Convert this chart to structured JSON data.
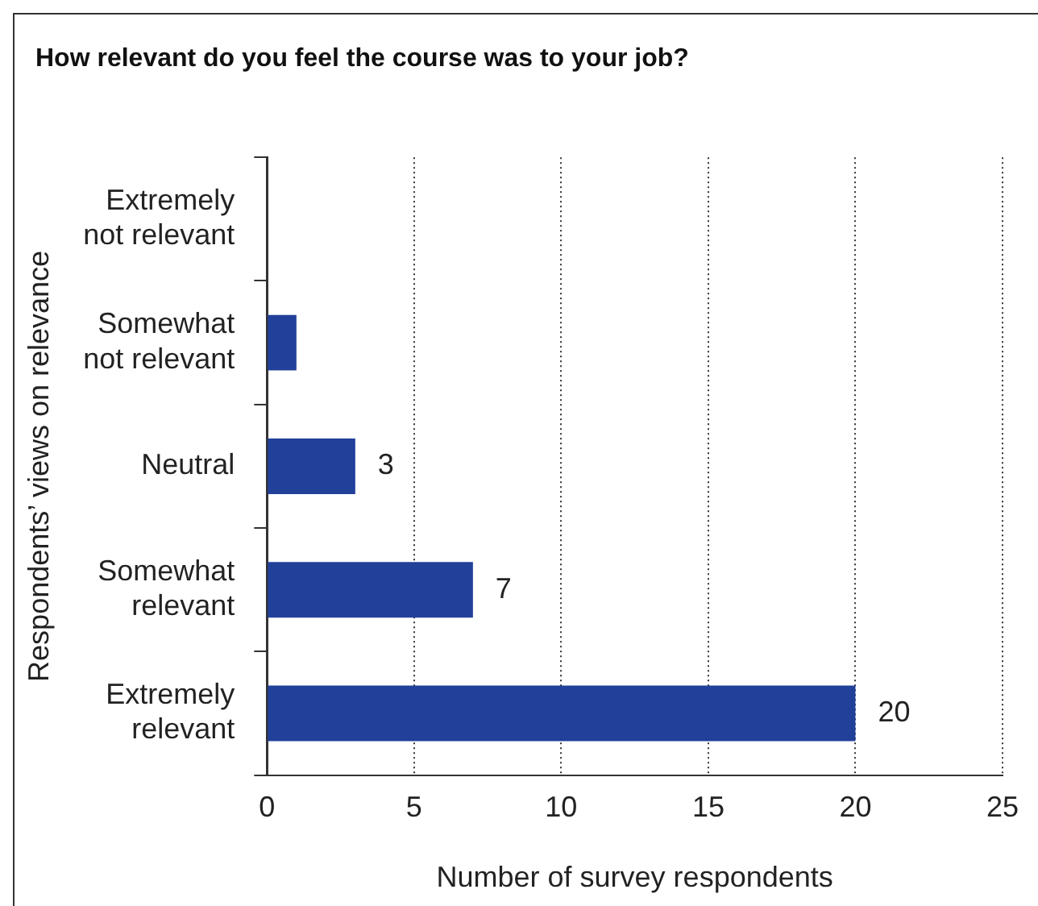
{
  "chart_data": {
    "type": "bar",
    "orientation": "horizontal",
    "title": "How relevant do you feel the course was to your job?",
    "xlabel": "Number of survey respondents",
    "ylabel": "Respondents’ views on relevance",
    "categories": [
      "Extremely not relevant",
      "Somewhat not relevant",
      "Neutral",
      "Somewhat relevant",
      "Extremely relevant"
    ],
    "values": [
      0,
      1,
      3,
      7,
      20
    ],
    "value_labels": [
      null,
      null,
      "3",
      "7",
      "20"
    ],
    "color": "#21409a",
    "xlim": [
      0,
      25
    ],
    "xticks": [
      0,
      5,
      10,
      15,
      20,
      25
    ],
    "grid": "x",
    "legend": false
  }
}
